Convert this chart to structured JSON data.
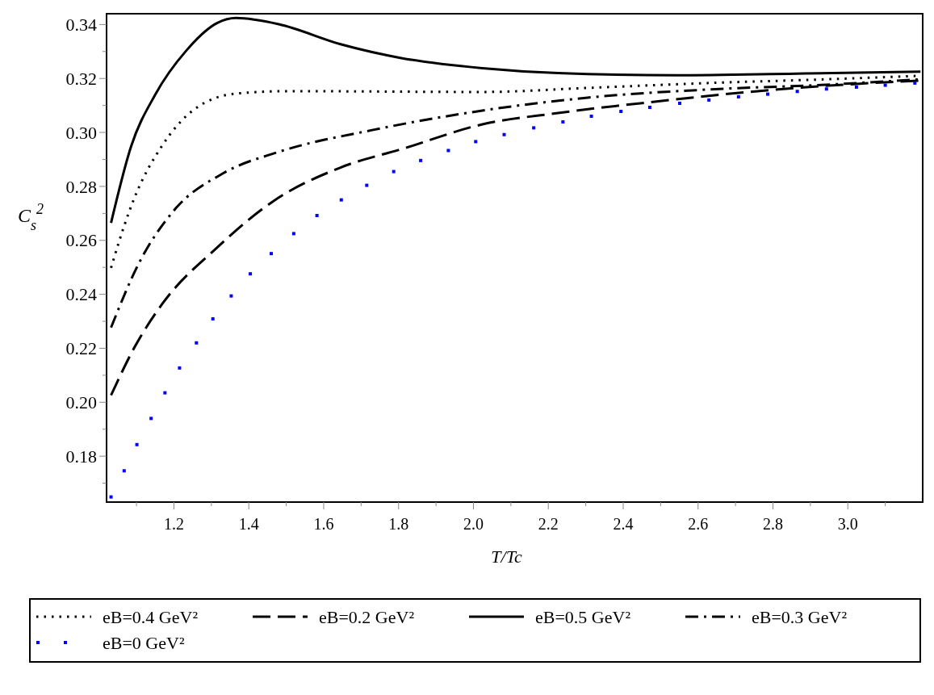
{
  "chart_data": {
    "type": "line",
    "xlabel": "T/Tc",
    "ylabel": "C$_{s}$$^{2}$",
    "xlim": [
      1.02,
      3.2
    ],
    "ylim": [
      0.163,
      0.344
    ],
    "xticks": [
      {
        "value": 1.1,
        "label": null
      },
      {
        "value": 1.2,
        "label": "1.2"
      },
      {
        "value": 1.3,
        "label": null
      },
      {
        "value": 1.4,
        "label": "1.4"
      },
      {
        "value": 1.5,
        "label": null
      },
      {
        "value": 1.6,
        "label": "1.6"
      },
      {
        "value": 1.7,
        "label": null
      },
      {
        "value": 1.8,
        "label": "1.8"
      },
      {
        "value": 1.9,
        "label": null
      },
      {
        "value": 2.0,
        "label": "2.0"
      },
      {
        "value": 2.1,
        "label": null
      },
      {
        "value": 2.2,
        "label": "2.2"
      },
      {
        "value": 2.3,
        "label": null
      },
      {
        "value": 2.4,
        "label": "2.4"
      },
      {
        "value": 2.5,
        "label": null
      },
      {
        "value": 2.6,
        "label": "2.6"
      },
      {
        "value": 2.7,
        "label": null
      },
      {
        "value": 2.8,
        "label": "2.8"
      },
      {
        "value": 2.9,
        "label": null
      },
      {
        "value": 3.0,
        "label": "3.0"
      },
      {
        "value": 3.1,
        "label": null
      }
    ],
    "yticks": [
      {
        "value": 0.17,
        "label": null
      },
      {
        "value": 0.18,
        "label": "0.18"
      },
      {
        "value": 0.19,
        "label": null
      },
      {
        "value": 0.2,
        "label": "0.20"
      },
      {
        "value": 0.21,
        "label": null
      },
      {
        "value": 0.22,
        "label": "0.22"
      },
      {
        "value": 0.23,
        "label": null
      },
      {
        "value": 0.24,
        "label": "0.24"
      },
      {
        "value": 0.25,
        "label": null
      },
      {
        "value": 0.26,
        "label": "0.26"
      },
      {
        "value": 0.27,
        "label": null
      },
      {
        "value": 0.28,
        "label": "0.28"
      },
      {
        "value": 0.29,
        "label": null
      },
      {
        "value": 0.3,
        "label": "0.30"
      },
      {
        "value": 0.31,
        "label": null
      },
      {
        "value": 0.32,
        "label": "0.32"
      },
      {
        "value": 0.33,
        "label": null
      },
      {
        "value": 0.34,
        "label": "0.34"
      }
    ],
    "grid": false,
    "legend": "bottom",
    "series": [
      {
        "name": "eB=0.4 GeV²",
        "color": "#000000",
        "line_style": "dotted",
        "x": [
          1.032,
          1.041,
          1.094,
          1.168,
          1.25,
          1.366,
          1.505,
          2.024,
          2.305,
          2.624,
          2.942,
          3.194
        ],
        "values": [
          0.2498,
          0.254,
          0.2756,
          0.295,
          0.3081,
          0.3144,
          0.3153,
          0.315,
          0.3165,
          0.3183,
          0.3197,
          0.321
        ]
      },
      {
        "name": "eB=0.2 GeV²",
        "color": "#000000",
        "line_style": "dashed",
        "x": [
          1.032,
          1.094,
          1.168,
          1.316,
          1.464,
          1.645,
          1.81,
          2.024,
          2.226,
          2.464,
          2.783,
          3.062,
          3.194
        ],
        "values": [
          0.2026,
          0.2202,
          0.2363,
          0.2574,
          0.2744,
          0.287,
          0.2939,
          0.303,
          0.3072,
          0.3111,
          0.3156,
          0.3183,
          0.3192
        ]
      },
      {
        "name": "eB=0.5 GeV²",
        "color": "#000000",
        "line_style": "solid",
        "x": [
          1.032,
          1.086,
          1.15,
          1.234,
          1.316,
          1.366,
          1.48,
          1.645,
          1.81,
          2.024,
          2.226,
          2.544,
          2.862,
          3.194
        ],
        "values": [
          0.2665,
          0.295,
          0.314,
          0.3305,
          0.3406,
          0.3424,
          0.3401,
          0.3327,
          0.3275,
          0.3238,
          0.322,
          0.3212,
          0.3218,
          0.3225
        ]
      },
      {
        "name": "eB=0.3 GeV²",
        "color": "#000000",
        "line_style": "dashdot",
        "x": [
          1.032,
          1.103,
          1.2,
          1.332,
          1.48,
          1.727,
          2.024,
          2.305,
          2.624,
          2.942,
          3.194
        ],
        "values": [
          0.2277,
          0.2506,
          0.2711,
          0.2849,
          0.2928,
          0.3008,
          0.3081,
          0.3129,
          0.3159,
          0.3177,
          0.3197
        ]
      },
      {
        "name": "eB=0 GeV²",
        "color": "#0000ff",
        "type": "scatter",
        "marker": "square",
        "x": [
          1.032,
          1.067,
          1.101,
          1.139,
          1.176,
          1.215,
          1.26,
          1.304,
          1.353,
          1.404,
          1.46,
          1.52,
          1.582,
          1.647,
          1.715,
          1.787,
          1.859,
          1.933,
          2.006,
          2.082,
          2.161,
          2.239,
          2.315,
          2.394,
          2.471,
          2.551,
          2.629,
          2.708,
          2.786,
          2.865,
          2.943,
          3.023,
          3.1,
          3.179
        ],
        "values": [
          0.1649,
          0.1746,
          0.1843,
          0.194,
          0.2035,
          0.2127,
          0.222,
          0.2309,
          0.2394,
          0.2476,
          0.2551,
          0.2625,
          0.2692,
          0.275,
          0.2804,
          0.2855,
          0.2896,
          0.2933,
          0.2966,
          0.2992,
          0.3017,
          0.3039,
          0.306,
          0.3078,
          0.3093,
          0.3108,
          0.312,
          0.3132,
          0.3142,
          0.3152,
          0.3161,
          0.3168,
          0.3175,
          0.3183
        ]
      }
    ]
  }
}
